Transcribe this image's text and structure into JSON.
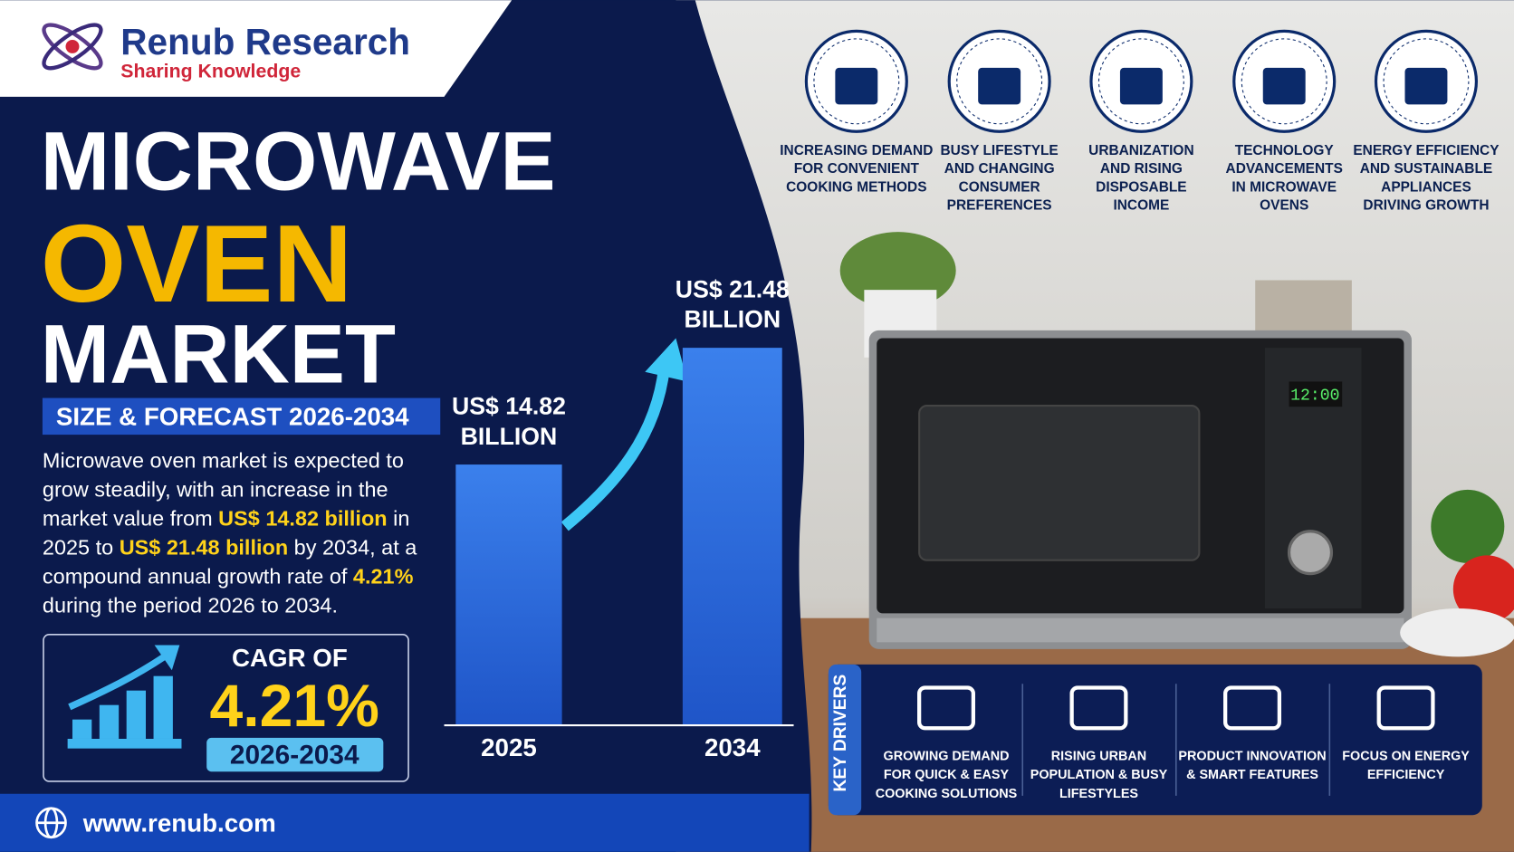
{
  "header": {
    "brand": "Renub Research",
    "tagline": "Sharing Knowledge"
  },
  "title": {
    "line1": "MICROWAVE",
    "line2": "OVEN",
    "line3": "MARKET"
  },
  "subtitle": "SIZE & FORECAST 2026-2034",
  "description": [
    "Microwave oven market is expected to grow steadily, with an increase in the market value from ",
    "US$ 14.82 billion",
    " in 2025 to ",
    "US$ 21.48 billion",
    " by 2034, at a compound annual growth rate of ",
    "4.21%",
    " during the period 2026 to 2034."
  ],
  "cagr": {
    "label": "CAGR OF",
    "value": "4.21%",
    "period": "2026-2034"
  },
  "chart_data": {
    "type": "bar",
    "categories": [
      "2025",
      "2034"
    ],
    "values": [
      14.82,
      21.48
    ],
    "value_labels": [
      "US$ 14.82 BILLION",
      "US$ 21.48 BILLION"
    ],
    "color": "#2f6fe0"
  },
  "factors": [
    {
      "lines": [
        "INCREASING DEMAND",
        "FOR CONVENIENT",
        "COOKING METHODS"
      ]
    },
    {
      "lines": [
        "BUSY LIFESTYLE",
        "AND CHANGING",
        "CONSUMER",
        "PREFERENCES"
      ]
    },
    {
      "lines": [
        "URBANIZATION",
        "AND RISING",
        "DISPOSABLE",
        "INCOME"
      ]
    },
    {
      "lines": [
        "TECHNOLOGY",
        "ADVANCEMENTS",
        "IN MICROWAVE",
        "OVENS"
      ]
    },
    {
      "lines": [
        "ENERGY EFFICIENCY",
        "AND SUSTAINABLE",
        "APPLIANCES",
        "DRIVING GROWTH"
      ]
    }
  ],
  "key_drivers": {
    "title": "KEY DRIVERS",
    "items": [
      {
        "lines": [
          "GROWING DEMAND",
          "FOR QUICK & EASY",
          "COOKING SOLUTIONS"
        ]
      },
      {
        "lines": [
          "RISING URBAN",
          "POPULATION & BUSY",
          "LIFESTYLES"
        ]
      },
      {
        "lines": [
          "PRODUCT INNOVATION",
          "& SMART FEATURES"
        ]
      },
      {
        "lines": [
          "FOCUS ON ENERGY",
          "EFFICIENCY"
        ]
      }
    ]
  },
  "product_display": "12:00",
  "footer": {
    "url": "www.renub.com"
  }
}
